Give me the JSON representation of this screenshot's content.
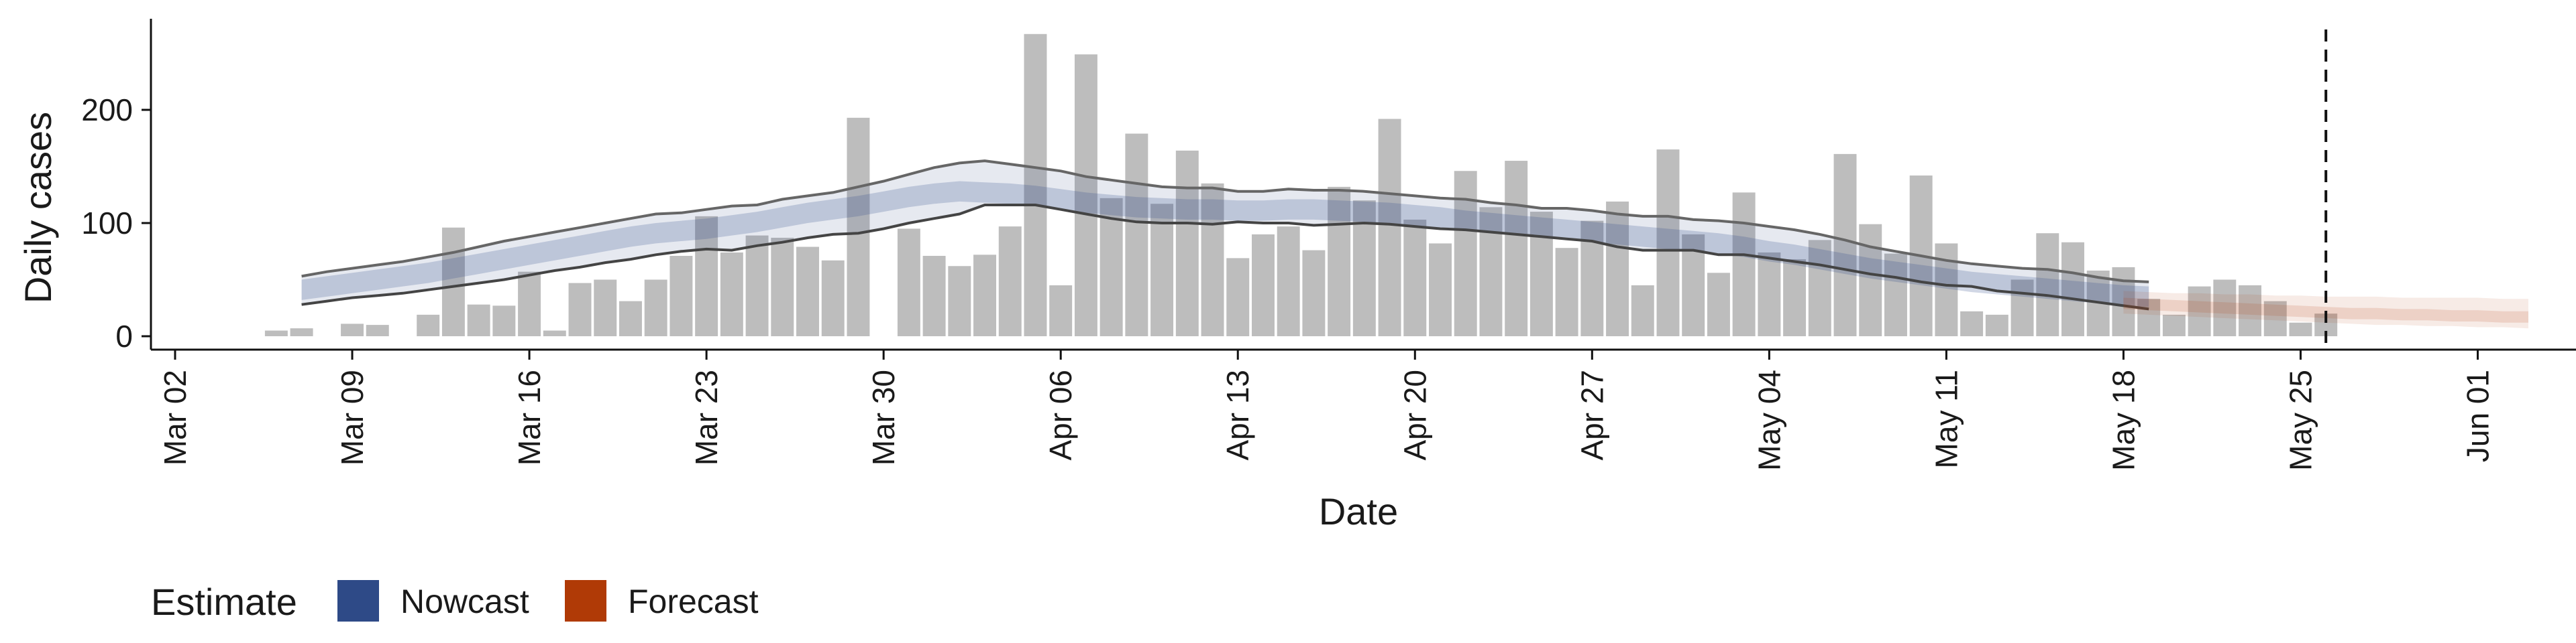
{
  "chart_data": {
    "type": "bar",
    "title": "",
    "xlabel": "Date",
    "ylabel": "Daily cases",
    "x_axis_start_date": "2020-02-29",
    "x_ticks": [
      "Mar 02",
      "Mar 09",
      "Mar 16",
      "Mar 23",
      "Mar 30",
      "Apr 06",
      "Apr 13",
      "Apr 20",
      "Apr 27",
      "May 04",
      "May 11",
      "May 18",
      "May 25",
      "Jun 01"
    ],
    "y_ticks": [
      0,
      100,
      200
    ],
    "ylim": [
      -12,
      282
    ],
    "grid": false,
    "vline_date": "May 26",
    "legend": {
      "title": "Estimate",
      "position": "bottom-left",
      "items": [
        {
          "label": "Nowcast",
          "color": "#2e4a87"
        },
        {
          "label": "Forecast",
          "color": "#b03a06"
        }
      ]
    },
    "bars": {
      "name": "Daily cases",
      "color": "#bdbdbd",
      "start_date": "Mar 06",
      "values": [
        5,
        7,
        0,
        11,
        10,
        0,
        19,
        96,
        28,
        27,
        57,
        5,
        47,
        50,
        31,
        50,
        71,
        106,
        74,
        89,
        87,
        79,
        67,
        193,
        0,
        95,
        71,
        62,
        72,
        97,
        267,
        45,
        249,
        122,
        179,
        117,
        164,
        135,
        69,
        90,
        97,
        76,
        132,
        120,
        192,
        103,
        82,
        146,
        114,
        155,
        110,
        78,
        102,
        119,
        45,
        165,
        90,
        56,
        127,
        74,
        68,
        85,
        161,
        99,
        73,
        142,
        82,
        22,
        19,
        50,
        91,
        83,
        58,
        61,
        33,
        19,
        44,
        50,
        45,
        31,
        12,
        20
      ]
    },
    "nowcast": {
      "color": "#2e4a87",
      "start_date": "Mar 07",
      "median": [
        41,
        44,
        47,
        50,
        53,
        56,
        60,
        64,
        68,
        72,
        76,
        80,
        84,
        88,
        91,
        93,
        95,
        98,
        101,
        105,
        109,
        112,
        115,
        119,
        123,
        126,
        128,
        127,
        126,
        124,
        121,
        118,
        116,
        114,
        113,
        112,
        112,
        111,
        111,
        112,
        112,
        111,
        110,
        109,
        107,
        105,
        102,
        100,
        98,
        96,
        94,
        92,
        90,
        88,
        86,
        84,
        82,
        79,
        75,
        72,
        68,
        64,
        60,
        57,
        54,
        51,
        48,
        46,
        44,
        42,
        40,
        38,
        36,
        35
      ],
      "lower_90": [
        28,
        31,
        34,
        36,
        38,
        41,
        44,
        47,
        50,
        54,
        58,
        61,
        65,
        68,
        72,
        75,
        77,
        76,
        80,
        83,
        87,
        90,
        91,
        95,
        100,
        104,
        108,
        116,
        116,
        116,
        112,
        108,
        104,
        101,
        100,
        100,
        99,
        101,
        100,
        100,
        98,
        99,
        100,
        99,
        97,
        95,
        94,
        92,
        90,
        88,
        86,
        84,
        79,
        76,
        76,
        76,
        72,
        72,
        69,
        66,
        63,
        59,
        55,
        52,
        48,
        45,
        44,
        40,
        38,
        36,
        33,
        30,
        27,
        24
      ],
      "upper_90": [
        53,
        57,
        60,
        63,
        66,
        70,
        74,
        79,
        84,
        88,
        92,
        96,
        100,
        104,
        108,
        109,
        112,
        115,
        116,
        121,
        124,
        127,
        132,
        137,
        143,
        149,
        153,
        155,
        152,
        149,
        146,
        141,
        138,
        135,
        132,
        131,
        131,
        128,
        128,
        130,
        129,
        129,
        128,
        126,
        124,
        122,
        121,
        118,
        116,
        113,
        113,
        111,
        108,
        106,
        106,
        103,
        102,
        100,
        97,
        94,
        90,
        85,
        79,
        75,
        71,
        67,
        64,
        62,
        60,
        59,
        56,
        52,
        49,
        48
      ]
    },
    "forecast": {
      "color": "#b03a06",
      "start_date": "May 18",
      "median": [
        29,
        28,
        27,
        26,
        25,
        24,
        23,
        22,
        21,
        20,
        20,
        19,
        19,
        18,
        18,
        17,
        17
      ],
      "lower": [
        20,
        19,
        18,
        17,
        16,
        15,
        14,
        13,
        12,
        11,
        10,
        10,
        9,
        9,
        8,
        8,
        7
      ],
      "upper": [
        40,
        39,
        38,
        38,
        37,
        37,
        36,
        36,
        35,
        35,
        35,
        34,
        34,
        34,
        34,
        33,
        33
      ]
    }
  }
}
